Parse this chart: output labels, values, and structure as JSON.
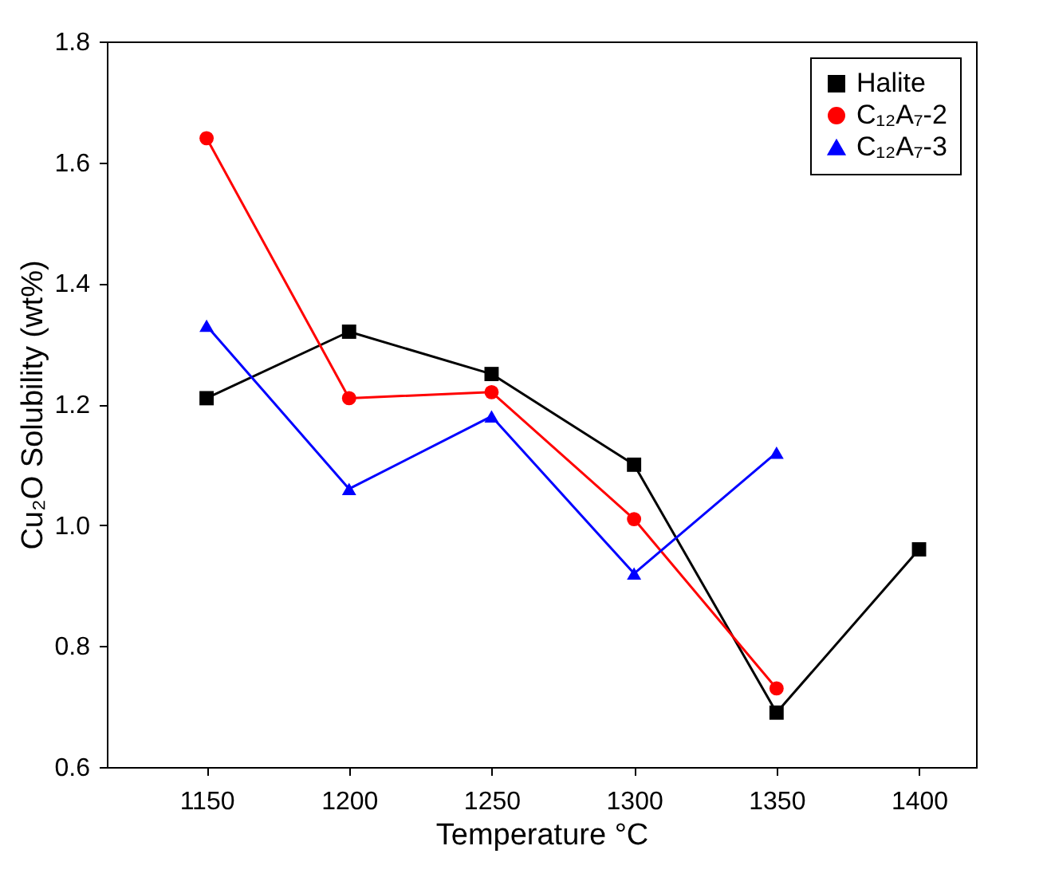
{
  "chart_data": {
    "type": "line",
    "xlabel": "Temperature °C",
    "ylabel": "Cu₂O Solubility (wt%)",
    "x": [
      1150,
      1200,
      1250,
      1300,
      1350,
      1400
    ],
    "xlim": [
      1115,
      1420
    ],
    "xticks": [
      1150,
      1200,
      1250,
      1300,
      1350,
      1400
    ],
    "ylim": [
      0.6,
      1.8
    ],
    "yticks": [
      0.6,
      0.8,
      {
        "value": 1,
        "label": "1.0"
      },
      1.2,
      1.4,
      1.6,
      1.8
    ],
    "grid": false,
    "legend": "top right",
    "line_style": "solid",
    "series": [
      {
        "name": "Halite",
        "color": "#000000",
        "marker": "square",
        "values": [
          1.21,
          1.32,
          1.25,
          1.1,
          0.69,
          0.96
        ]
      },
      {
        "name": "C₁₂A₇-2",
        "color": "#ff0000",
        "marker": "circle",
        "values": [
          1.64,
          1.21,
          1.22,
          1.01,
          0.73,
          null
        ]
      },
      {
        "name": "C₁₂A₇-3",
        "color": "#0000ff",
        "marker": "triangle",
        "values": [
          1.33,
          1.06,
          1.18,
          0.92,
          1.12,
          null
        ]
      }
    ]
  }
}
